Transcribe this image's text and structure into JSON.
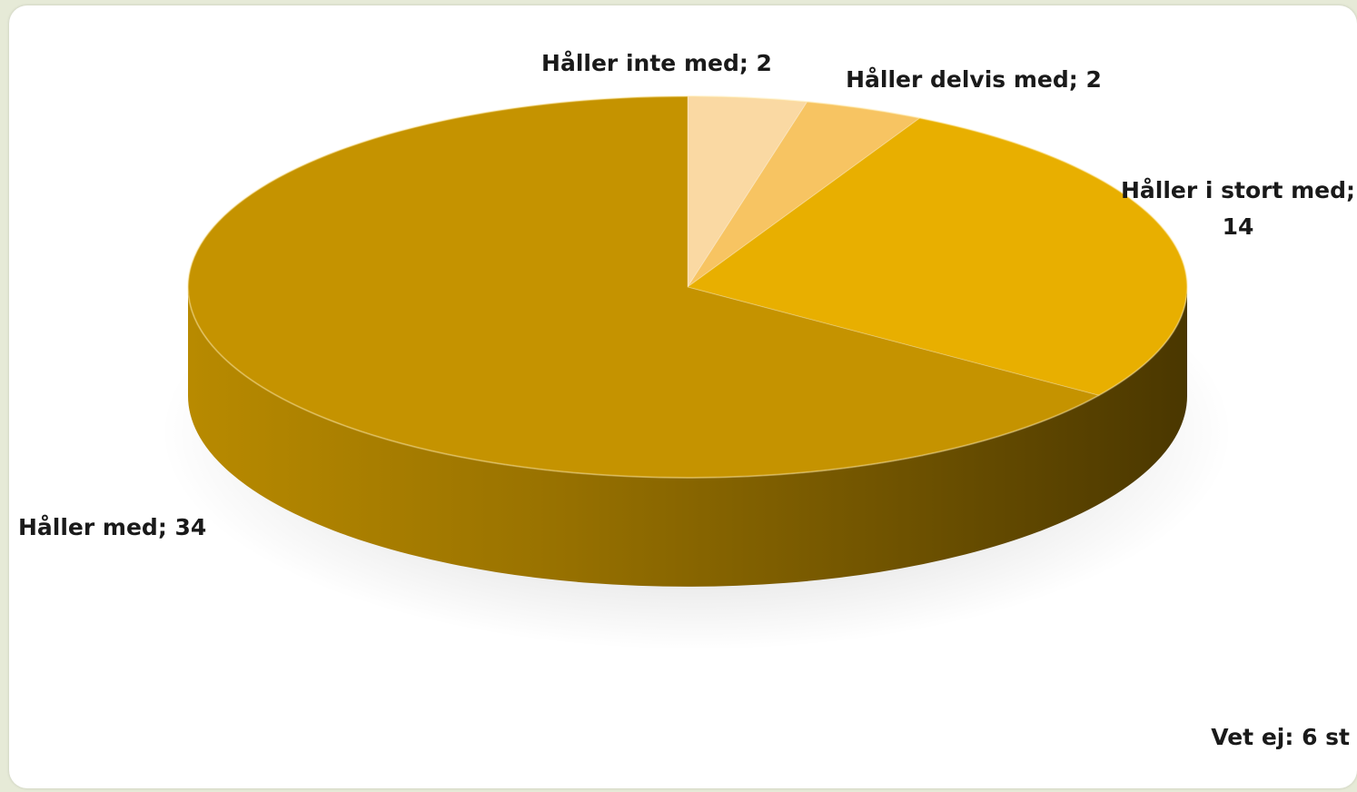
{
  "chart_data": {
    "type": "pie",
    "style": "3d",
    "categories": [
      "Håller inte med",
      "Håller delvis med",
      "Håller i stort med",
      "Håller med"
    ],
    "values": [
      2,
      2,
      14,
      34
    ],
    "labels": [
      "Håller inte med; 2",
      "Håller delvis med; 2",
      "Håller i stort med;",
      "14",
      "Håller med; 34"
    ],
    "colors": [
      "#fad9a3",
      "#f7c462",
      "#e8af00",
      "#c59300"
    ],
    "note": "Vet ej: 6 st"
  }
}
